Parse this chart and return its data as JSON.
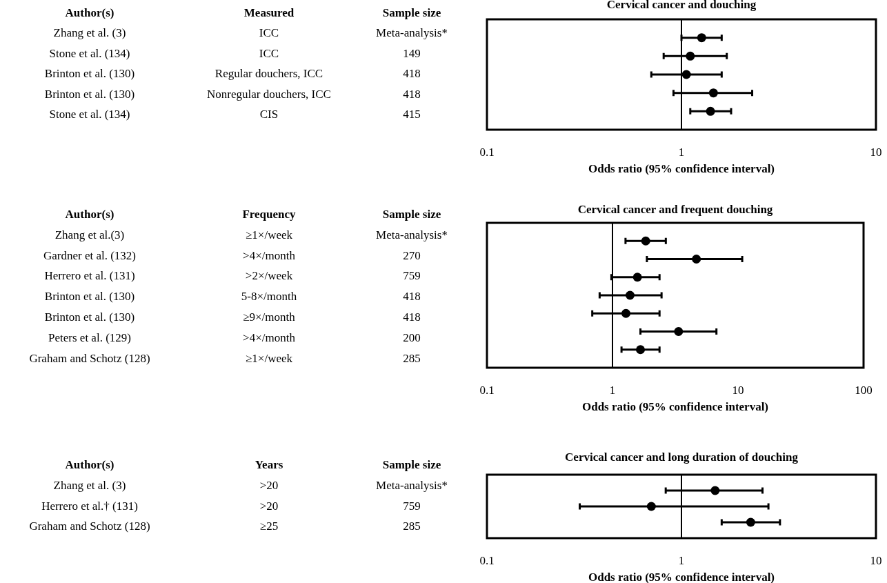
{
  "chart_data": [
    {
      "type": "other",
      "annotations": [
        "Author(s)",
        "Measured",
        "Sample size",
        "Zhang et al. (3)",
        "ICC",
        "Meta-analysis*",
        "Stone et al. (134)",
        "ICC",
        "149",
        "Brinton et al. (130)",
        "Regular douchers, ICC",
        "418",
        "Brinton et al. (130)",
        "Nonregular douchers, ICC",
        "418",
        "Stone et al. (134)",
        "CIS",
        "415"
      ]
    },
    {
      "type": "scatter",
      "orientation": "horizontal",
      "title": "Cervical cancer and douching",
      "xlabel": "Odds ratio (95% confidence interval)",
      "categories": [
        null,
        null,
        null,
        null,
        null
      ],
      "values": [
        1.27,
        1.11,
        1.06,
        1.46,
        1.41
      ],
      "errors": [
        [
          1.0,
          1.61
        ],
        [
          0.81,
          1.71
        ],
        [
          0.7,
          1.61
        ],
        [
          0.91,
          2.31
        ],
        [
          1.11,
          1.8
        ]
      ],
      "color": "#000000",
      "marker": "circle",
      "log": "x",
      "xlim": [
        0.1,
        10
      ],
      "xticks": [
        0.1,
        1,
        10
      ],
      "tick_labels": "x",
      "ref_lines": [
        {
          "axis": "x",
          "value": 1,
          "color": "#000000"
        }
      ]
    },
    {
      "type": "other",
      "annotations": [
        "Author(s)",
        "Frequency",
        "Sample size",
        "Zhang et al.(3)",
        "≥1×/week",
        "Meta-analysis*",
        "Gardner et al. (132)",
        ">4×/month",
        "270",
        "Herrero et al. (131)",
        ">2×/week",
        "759",
        "Brinton et al. (130)",
        "5-8×/month",
        "418",
        "Brinton et al. (130)",
        "≥9×/month",
        "418",
        "Peters et al. (129)",
        ">4×/month",
        "200",
        "Graham and Schotz (128)",
        "≥1×/week",
        "285"
      ]
    },
    {
      "type": "scatter",
      "orientation": "horizontal",
      "title": "Cervical cancer and frequent douching",
      "xlabel": "Odds ratio (95% confidence interval)",
      "categories": [
        null,
        null,
        null,
        null,
        null,
        null,
        null
      ],
      "values": [
        1.84,
        4.66,
        1.58,
        1.38,
        1.28,
        3.36,
        1.67
      ],
      "errors": [
        [
          1.27,
          2.66
        ],
        [
          1.88,
          10.8
        ],
        [
          0.98,
          2.37
        ],
        [
          0.79,
          2.46
        ],
        [
          0.69,
          2.37
        ],
        [
          1.67,
          6.73
        ],
        [
          1.18,
          2.37
        ]
      ],
      "color": "#000000",
      "marker": "circle",
      "log": "x",
      "xlim": [
        0.1,
        100
      ],
      "xticks": [
        0.1,
        1,
        10,
        100
      ],
      "tick_labels": "x",
      "ref_lines": [
        {
          "axis": "x",
          "value": 1,
          "color": "#000000"
        }
      ]
    },
    {
      "type": "other",
      "annotations": [
        "Author(s)",
        "Years",
        "Sample size",
        "Zhang et al. (3)",
        ">20",
        "Meta-analysis*",
        "Herrero et al.† (131)",
        ">20",
        "759",
        "Graham and Schotz (128)",
        "≥25",
        "285"
      ]
    },
    {
      "type": "scatter",
      "orientation": "horizontal",
      "title": "Cervical cancer and long duration of douching",
      "xlabel": "Odds ratio (95% confidence interval)",
      "categories": [
        null,
        null,
        null
      ],
      "values": [
        1.49,
        0.7,
        2.27
      ],
      "errors": [
        [
          0.83,
          2.61
        ],
        [
          0.3,
          2.8
        ],
        [
          1.61,
          3.21
        ]
      ],
      "color": "#000000",
      "marker": "circle",
      "log": "x",
      "xlim": [
        0.1,
        10
      ],
      "xticks": [
        0.1,
        1,
        10
      ],
      "tick_labels": "x",
      "ref_lines": [
        {
          "axis": "x",
          "value": 1,
          "color": "#000000"
        }
      ]
    }
  ]
}
